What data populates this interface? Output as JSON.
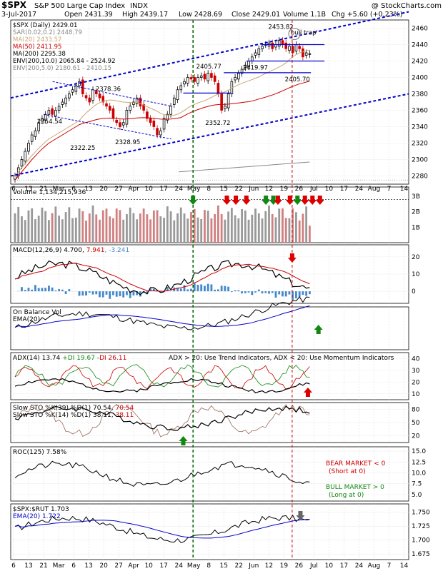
{
  "header": {
    "symbol": "$SPX",
    "name": "S&P 500 Large Cap Index",
    "exchange": "INDX",
    "watermark": "@ StockCharts.com",
    "date": "3-Jul-2017",
    "open": "Open 2431.39",
    "high": "High 2439.17",
    "low": "Low 2428.69",
    "close": "Close 2429.01",
    "volume": "Volume 1.1B",
    "change": "Chg +5.60 (+0.23%)"
  },
  "colors": {
    "up": "#000000",
    "down": "#cc0000",
    "ma20": "#c8a878",
    "ma50": "#cc0000",
    "ma200": "#000000",
    "trend": "#0000cc",
    "green_line": "#006600",
    "red_line": "#cc0000",
    "green_arrow": "#118811",
    "red_arrow": "#dd0000",
    "gray_arrow": "#666666",
    "vol_up": "#999999",
    "vol_down": "#d08080",
    "macd_hist": "#4488cc",
    "rsi_bear_note": "#cc0000",
    "rsi_bull_note": "#118811"
  },
  "chart_data": {
    "type": "candlestick-multi-panel",
    "xaxis_labels": [
      "6",
      "13",
      "21",
      "Mar",
      "6",
      "13",
      "20",
      "27",
      "Apr",
      "10",
      "17",
      "24",
      "May",
      "8",
      "15",
      "22",
      "Jun",
      "12",
      "19",
      "26",
      "Jul",
      "10",
      "17",
      "24",
      "Aug",
      "7",
      "14"
    ],
    "price_panel": {
      "legend": [
        "$SPX (Daily) 2429.01",
        "SAR(0.02,0.2) 2448.79",
        "MA(20) 2433.57",
        "MA(50) 2411.95",
        "MA(200) 2295.38",
        "ENV(200,10.0) 2065.84 - 2524.92",
        "ENV(200,5.0) 2180.61 - 2410.15"
      ],
      "ylim": [
        2270,
        2470
      ],
      "ticks": [
        2280,
        2300,
        2320,
        2340,
        2360,
        2380,
        2400,
        2420,
        2440,
        2460
      ],
      "annotations": [
        {
          "text": "2453.82",
          "value": 2453.82
        },
        {
          "text": "'bull trap'"
        },
        {
          "text": "2405.77",
          "value": 2405.77
        },
        {
          "text": "2419.97",
          "value": 2419.97
        },
        {
          "text": "2405.70",
          "value": 2405.7
        },
        {
          "text": "2378.36",
          "value": 2378.36
        },
        {
          "text": "2354.54",
          "value": 2354.54
        },
        {
          "text": "2352.72",
          "value": 2352.72
        },
        {
          "text": "2322.25",
          "value": 2322.25
        },
        {
          "text": "2328.95",
          "value": 2328.95
        }
      ],
      "candles_close": [
        2280,
        2290,
        2300,
        2310,
        2320,
        2330,
        2335,
        2345,
        2350,
        2355,
        2360,
        2355,
        2360,
        2365,
        2370,
        2375,
        2380,
        2385,
        2390,
        2395,
        2380,
        2375,
        2370,
        2385,
        2380,
        2375,
        2370,
        2365,
        2360,
        2350,
        2345,
        2340,
        2345,
        2360,
        2365,
        2370,
        2375,
        2365,
        2360,
        2350,
        2345,
        2340,
        2330,
        2335,
        2350,
        2355,
        2365,
        2375,
        2385,
        2390,
        2395,
        2400,
        2398,
        2395,
        2400,
        2402,
        2398,
        2405,
        2400,
        2395,
        2380,
        2360,
        2365,
        2380,
        2395,
        2400,
        2405,
        2410,
        2415,
        2420,
        2425,
        2430,
        2435,
        2438,
        2440,
        2442,
        2435,
        2440,
        2445,
        2440,
        2435,
        2438,
        2430,
        2440,
        2435,
        2425,
        2430,
        2429
      ]
    },
    "volume_panel": {
      "legend": "Volume 1,134,215,936",
      "ticks": [
        "3B",
        "2B",
        "1B"
      ]
    },
    "macd_panel": {
      "legend_name": "MACD(12,26,9)",
      "macd_value": "4.700",
      "signal_value": "7.941",
      "hist_value": "-3.241",
      "ticks": [
        20,
        10,
        0
      ]
    },
    "obv_panel": {
      "legend1": "On Balance Vol",
      "legend2": "EMA(20)"
    },
    "adx_panel": {
      "legend_name": "ADX(14) 13.74",
      "plus_di": "+DI 19.67",
      "minus_di": "-DI 26.11",
      "note": "ADX > 20: Use Trend Indicators, ADX < 20: Use Momentum Indicators",
      "ticks": [
        40,
        30,
        20,
        10
      ]
    },
    "sto_panel": {
      "legend1_name": "Slow STO %K(39) %D(1)",
      "legend1_k": "70.54",
      "legend1_d": "70.54",
      "legend2_name": "Slow STO %K(14) %D(1)",
      "legend2_k": "38.11",
      "legend2_d": "38.11",
      "ticks": [
        80,
        50,
        20
      ]
    },
    "roc_panel": {
      "legend": "ROC(125) 7.58%",
      "bear_note": "BEAR MARKET < 0",
      "bear_sub": "(Short at 0)",
      "bull_note": "BULL MARKET > 0",
      "bull_sub": "(Long at 0)",
      "ticks": [
        "15.0",
        "12.5",
        "10.0",
        "7.5",
        "5.0"
      ]
    },
    "ratio_panel": {
      "legend1": "$SPX:$RUT 1.703",
      "legend2": "EMA(20) 1.722",
      "ticks": [
        "1.750",
        "1.725",
        "1.700",
        "1.675"
      ]
    }
  }
}
